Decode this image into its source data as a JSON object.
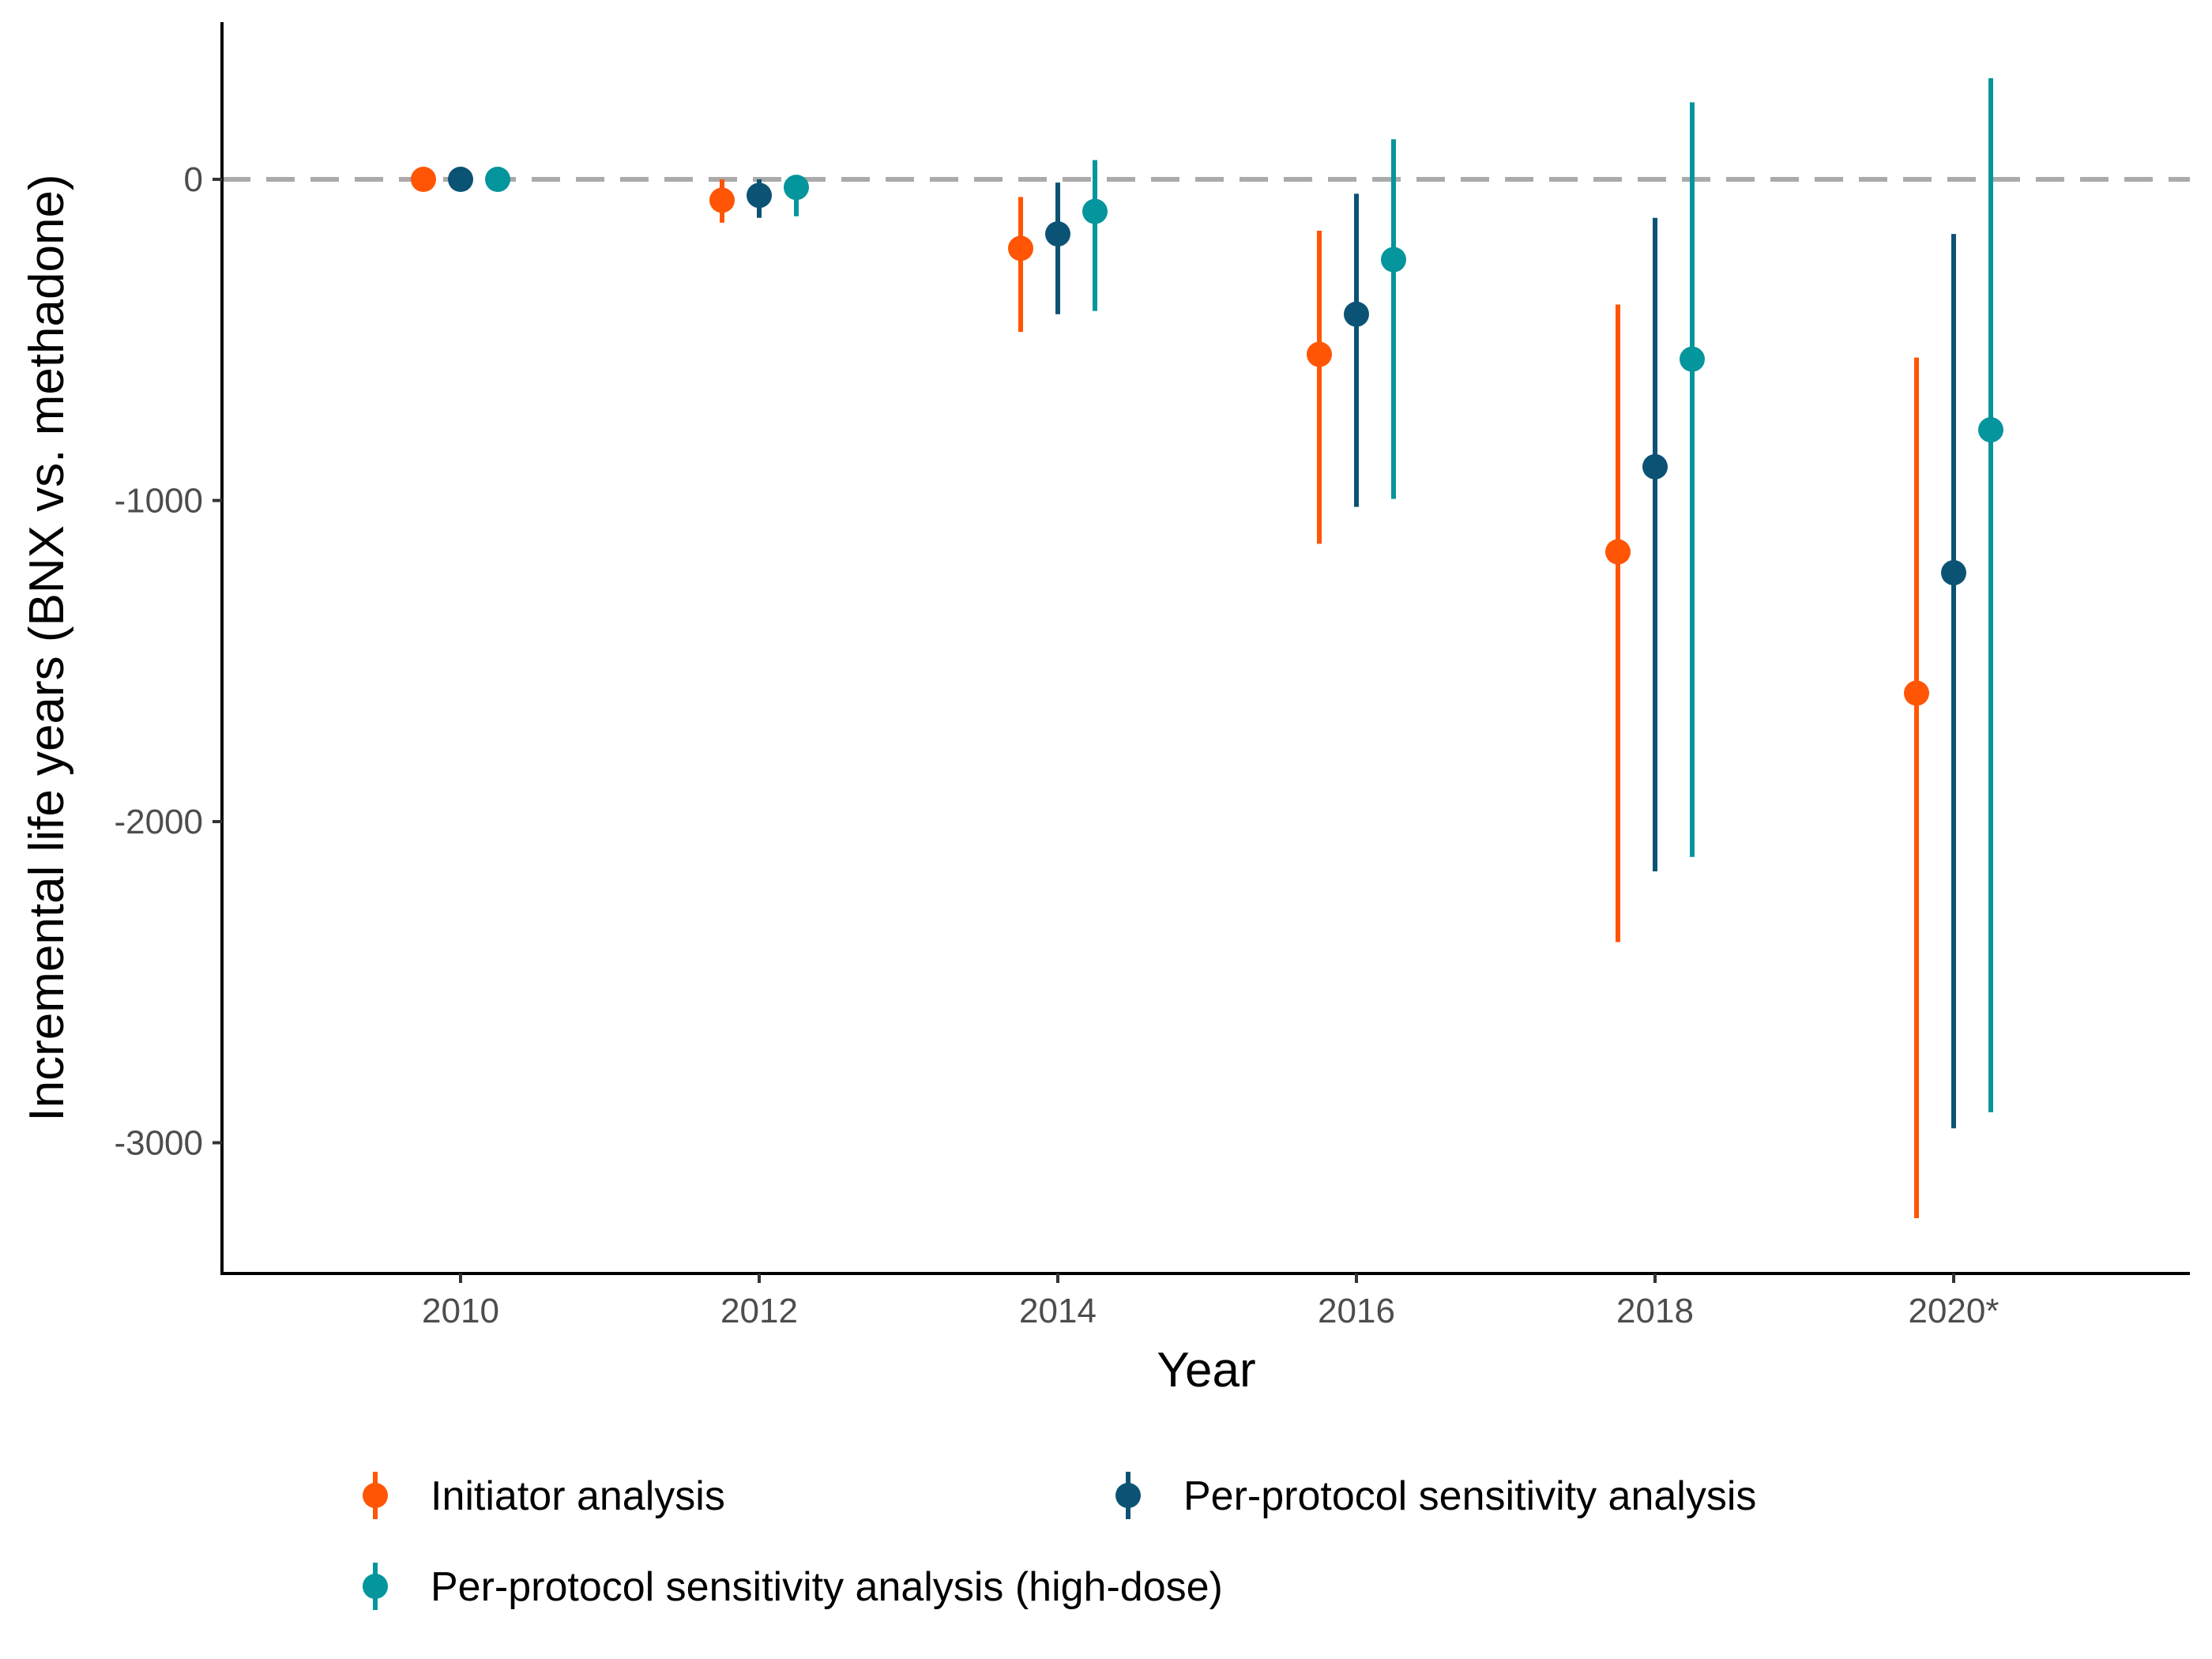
{
  "chart_data": {
    "type": "scatter",
    "subtype": "pointrange",
    "title": "",
    "xlabel": "Year",
    "ylabel": "Incremental life years (BNX vs. methadone)",
    "categories": [
      "2010",
      "2012",
      "2014",
      "2016",
      "2018",
      "2020*"
    ],
    "ylim": [
      -3400,
      430
    ],
    "yticks": [
      0,
      -1000,
      -2000,
      -3000
    ],
    "reference_line": {
      "y": 0,
      "style": "dashed",
      "color": "#AAAAAA"
    },
    "grid": false,
    "legend_position": "bottom",
    "series": [
      {
        "name": "Initiator analysis",
        "color": "#FF5505",
        "values": [
          0,
          -65,
          -215,
          -545,
          -1160,
          -1600
        ],
        "lower": [
          0,
          -135,
          -475,
          -1135,
          -2375,
          -3235
        ],
        "upper": [
          0,
          0,
          -55,
          -160,
          -390,
          -555
        ]
      },
      {
        "name": "Per-protocol sensitivity analysis",
        "color": "#0B5374",
        "values": [
          0,
          -50,
          -170,
          -420,
          -895,
          -1225
        ],
        "lower": [
          0,
          -120,
          -420,
          -1020,
          -2155,
          -2955
        ],
        "upper": [
          0,
          0,
          -10,
          -45,
          -120,
          -170
        ]
      },
      {
        "name": "Per-protocol sensitivity analysis (high-dose)",
        "color": "#05959C",
        "values": [
          0,
          -25,
          -100,
          -250,
          -560,
          -780
        ],
        "lower": [
          0,
          -115,
          -410,
          -995,
          -2110,
          -2905
        ],
        "upper": [
          0,
          10,
          60,
          125,
          240,
          315
        ]
      }
    ]
  }
}
